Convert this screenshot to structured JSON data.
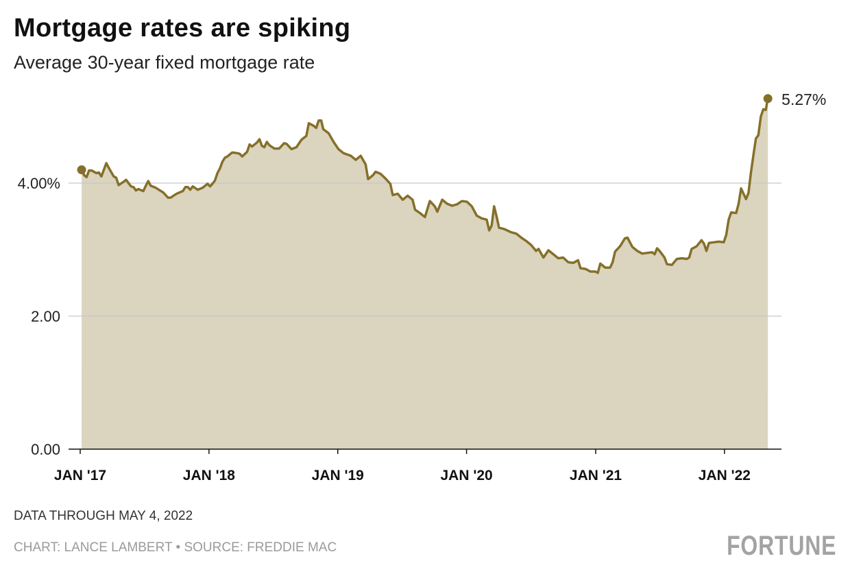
{
  "title": "Mortgage rates are spiking",
  "subtitle": "Average 30-year fixed mortgage rate",
  "footer": {
    "note": "DATA THROUGH MAY 4, 2022",
    "credit": "CHART: LANCE LAMBERT • SOURCE: FREDDIE MAC",
    "logo": "FORTUNE"
  },
  "colors": {
    "line": "#857029",
    "fill": "#dbd4bf",
    "grid": "#c8c8c8"
  },
  "chart_data": {
    "type": "area",
    "title": "Mortgage rates are spiking",
    "subtitle": "Average 30-year fixed mortgage rate",
    "xlabel": "",
    "ylabel": "",
    "ylim": [
      0,
      5.5
    ],
    "yticks": [
      {
        "value": 0,
        "label": "0.00"
      },
      {
        "value": 2,
        "label": "2.00"
      },
      {
        "value": 4,
        "label": "4.00%"
      }
    ],
    "xticks": [
      {
        "date": "2017-01-01",
        "label": "JAN '17"
      },
      {
        "date": "2018-01-01",
        "label": "JAN '18"
      },
      {
        "date": "2019-01-01",
        "label": "JAN '19"
      },
      {
        "date": "2020-01-01",
        "label": "JAN '20"
      },
      {
        "date": "2021-01-01",
        "label": "JAN '21"
      },
      {
        "date": "2022-01-01",
        "label": "JAN '22"
      }
    ],
    "grid": "horizontal",
    "end_label": "5.27%",
    "x": [
      "2017-01-05",
      "2017-01-12",
      "2017-01-19",
      "2017-01-26",
      "2017-02-02",
      "2017-02-16",
      "2017-02-23",
      "2017-03-02",
      "2017-03-16",
      "2017-03-23",
      "2017-04-06",
      "2017-04-13",
      "2017-04-20",
      "2017-05-04",
      "2017-05-11",
      "2017-05-25",
      "2017-06-01",
      "2017-06-08",
      "2017-06-15",
      "2017-06-29",
      "2017-07-06",
      "2017-07-13",
      "2017-07-20",
      "2017-08-03",
      "2017-08-24",
      "2017-09-07",
      "2017-09-14",
      "2017-09-28",
      "2017-10-05",
      "2017-10-19",
      "2017-10-26",
      "2017-11-02",
      "2017-11-09",
      "2017-11-16",
      "2017-11-30",
      "2017-12-14",
      "2017-12-28",
      "2018-01-04",
      "2018-01-11",
      "2018-01-18",
      "2018-01-25",
      "2018-02-01",
      "2018-02-08",
      "2018-02-15",
      "2018-02-22",
      "2018-03-01",
      "2018-03-08",
      "2018-03-22",
      "2018-03-29",
      "2018-04-05",
      "2018-04-19",
      "2018-04-26",
      "2018-05-03",
      "2018-05-17",
      "2018-05-24",
      "2018-05-31",
      "2018-06-07",
      "2018-06-14",
      "2018-06-21",
      "2018-07-05",
      "2018-07-19",
      "2018-08-02",
      "2018-08-09",
      "2018-08-23",
      "2018-09-06",
      "2018-09-20",
      "2018-10-04",
      "2018-10-11",
      "2018-10-25",
      "2018-11-01",
      "2018-11-08",
      "2018-11-15",
      "2018-11-21",
      "2018-12-06",
      "2018-12-20",
      "2019-01-03",
      "2019-01-17",
      "2019-02-07",
      "2019-02-21",
      "2019-03-07",
      "2019-03-21",
      "2019-03-28",
      "2019-04-11",
      "2019-04-18",
      "2019-05-02",
      "2019-05-16",
      "2019-05-30",
      "2019-06-06",
      "2019-06-20",
      "2019-07-04",
      "2019-07-18",
      "2019-08-01",
      "2019-08-08",
      "2019-08-22",
      "2019-09-05",
      "2019-09-19",
      "2019-10-03",
      "2019-10-10",
      "2019-10-24",
      "2019-11-07",
      "2019-11-21",
      "2019-12-05",
      "2019-12-19",
      "2020-01-02",
      "2020-01-16",
      "2020-01-30",
      "2020-02-13",
      "2020-02-27",
      "2020-03-05",
      "2020-03-12",
      "2020-03-19",
      "2020-03-26",
      "2020-04-02",
      "2020-04-16",
      "2020-05-07",
      "2020-05-21",
      "2020-06-04",
      "2020-06-18",
      "2020-07-02",
      "2020-07-16",
      "2020-07-23",
      "2020-08-06",
      "2020-08-20",
      "2020-09-03",
      "2020-09-17",
      "2020-10-01",
      "2020-10-15",
      "2020-10-29",
      "2020-11-12",
      "2020-11-19",
      "2020-12-03",
      "2020-12-17",
      "2020-12-31",
      "2021-01-07",
      "2021-01-14",
      "2021-01-28",
      "2021-02-11",
      "2021-02-18",
      "2021-02-25",
      "2021-03-11",
      "2021-03-25",
      "2021-04-01",
      "2021-04-15",
      "2021-04-29",
      "2021-05-13",
      "2021-05-27",
      "2021-06-10",
      "2021-06-17",
      "2021-06-24",
      "2021-07-01",
      "2021-07-15",
      "2021-07-22",
      "2021-08-05",
      "2021-08-19",
      "2021-09-02",
      "2021-09-16",
      "2021-09-23",
      "2021-09-30",
      "2021-10-14",
      "2021-10-28",
      "2021-11-04",
      "2021-11-11",
      "2021-11-18",
      "2021-12-02",
      "2021-12-16",
      "2021-12-30",
      "2022-01-06",
      "2022-01-13",
      "2022-01-20",
      "2022-02-03",
      "2022-02-10",
      "2022-02-17",
      "2022-03-03",
      "2022-03-10",
      "2022-03-17",
      "2022-03-24",
      "2022-03-31",
      "2022-04-07",
      "2022-04-14",
      "2022-04-21",
      "2022-04-28",
      "2022-05-04"
    ],
    "values": [
      4.2,
      4.12,
      4.09,
      4.19,
      4.19,
      4.15,
      4.16,
      4.1,
      4.3,
      4.23,
      4.1,
      4.08,
      3.97,
      4.02,
      4.05,
      3.95,
      3.94,
      3.89,
      3.91,
      3.88,
      3.96,
      4.03,
      3.96,
      3.93,
      3.86,
      3.78,
      3.78,
      3.83,
      3.85,
      3.88,
      3.94,
      3.94,
      3.9,
      3.95,
      3.9,
      3.93,
      3.99,
      3.95,
      3.99,
      4.04,
      4.15,
      4.22,
      4.32,
      4.38,
      4.4,
      4.43,
      4.46,
      4.45,
      4.44,
      4.4,
      4.47,
      4.58,
      4.55,
      4.61,
      4.66,
      4.56,
      4.54,
      4.62,
      4.57,
      4.52,
      4.52,
      4.6,
      4.59,
      4.51,
      4.54,
      4.65,
      4.71,
      4.9,
      4.86,
      4.83,
      4.94,
      4.94,
      4.81,
      4.75,
      4.62,
      4.51,
      4.45,
      4.41,
      4.35,
      4.41,
      4.28,
      4.06,
      4.12,
      4.17,
      4.14,
      4.07,
      3.99,
      3.82,
      3.84,
      3.75,
      3.81,
      3.75,
      3.6,
      3.55,
      3.49,
      3.73,
      3.65,
      3.57,
      3.75,
      3.69,
      3.66,
      3.68,
      3.73,
      3.72,
      3.65,
      3.51,
      3.47,
      3.45,
      3.29,
      3.36,
      3.65,
      3.5,
      3.33,
      3.31,
      3.26,
      3.24,
      3.18,
      3.13,
      3.07,
      2.98,
      3.01,
      2.88,
      2.99,
      2.93,
      2.87,
      2.88,
      2.81,
      2.8,
      2.84,
      2.72,
      2.71,
      2.67,
      2.67,
      2.65,
      2.79,
      2.73,
      2.73,
      2.81,
      2.97,
      3.05,
      3.17,
      3.18,
      3.04,
      2.98,
      2.94,
      2.95,
      2.96,
      2.93,
      3.02,
      2.98,
      2.88,
      2.78,
      2.77,
      2.86,
      2.87,
      2.86,
      2.88,
      3.01,
      3.05,
      3.14,
      3.09,
      2.98,
      3.1,
      3.11,
      3.12,
      3.11,
      3.22,
      3.45,
      3.56,
      3.55,
      3.69,
      3.92,
      3.76,
      3.85,
      4.16,
      4.42,
      4.67,
      4.72,
      5.0,
      5.11,
      5.1,
      5.27
    ]
  }
}
